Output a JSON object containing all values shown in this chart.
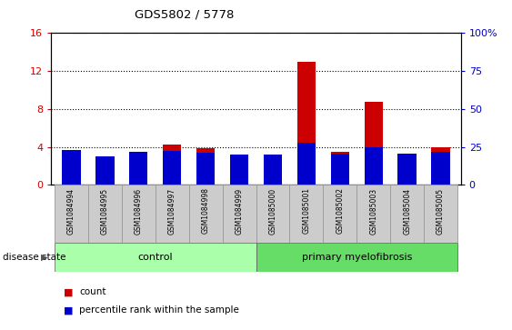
{
  "title": "GDS5802 / 5778",
  "samples": [
    "GSM1084994",
    "GSM1084995",
    "GSM1084996",
    "GSM1084997",
    "GSM1084998",
    "GSM1084999",
    "GSM1085000",
    "GSM1085001",
    "GSM1085002",
    "GSM1085003",
    "GSM1085004",
    "GSM1085005"
  ],
  "count_values": [
    3.5,
    2.2,
    3.2,
    4.2,
    3.9,
    3.0,
    3.0,
    13.0,
    3.5,
    8.7,
    3.0,
    4.0
  ],
  "percentile_values": [
    23.0,
    19.0,
    22.0,
    22.5,
    21.0,
    20.0,
    20.0,
    28.0,
    20.5,
    25.0,
    20.5,
    22.0
  ],
  "left_ylim": [
    0,
    16
  ],
  "left_yticks": [
    0,
    4,
    8,
    12,
    16
  ],
  "right_ylim": [
    0,
    100
  ],
  "right_yticks": [
    0,
    25,
    50,
    75,
    100
  ],
  "right_yticklabels": [
    "0",
    "25",
    "50",
    "75",
    "100%"
  ],
  "bar_color_red": "#cc0000",
  "bar_color_blue": "#0000cc",
  "bar_width": 0.55,
  "control_indices": [
    0,
    1,
    2,
    3,
    4,
    5
  ],
  "disease_indices": [
    6,
    7,
    8,
    9,
    10,
    11
  ],
  "control_label": "control",
  "disease_label": "primary myelofibrosis",
  "disease_state_label": "disease state",
  "control_color": "#aaffaa",
  "disease_color": "#66dd66",
  "bg_color": "#ffffff",
  "tick_area_color": "#cccccc",
  "legend_count_label": "count",
  "legend_percentile_label": "percentile rank within the sample",
  "left_tick_color": "#cc0000",
  "right_tick_color": "#0000cc",
  "grid_color": "#000000",
  "grid_linestyle": "dotted",
  "grid_linewidth": 0.8
}
